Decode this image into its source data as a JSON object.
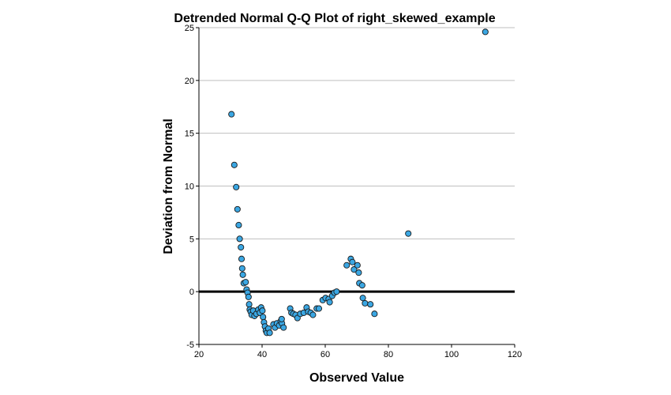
{
  "chart_data": {
    "type": "scatter",
    "title": "Detrended Normal Q-Q Plot of right_skewed_example",
    "xlabel": "Observed Value",
    "ylabel": "Deviation from Normal",
    "xlim": [
      20,
      120
    ],
    "ylim": [
      -5,
      25
    ],
    "xticks": [
      20,
      40,
      60,
      80,
      100,
      120
    ],
    "yticks": [
      -5,
      0,
      5,
      10,
      15,
      20,
      25
    ],
    "grid": "horizontal",
    "reference_line_y": 0,
    "colors": {
      "point_fill": "#3ba7e3",
      "point_stroke": "#1a1a1a",
      "grid": "#bfbfbf",
      "reference_line": "#000000"
    },
    "points": [
      [
        30.3,
        16.8
      ],
      [
        31.2,
        12.0
      ],
      [
        31.8,
        9.9
      ],
      [
        32.2,
        7.8
      ],
      [
        32.6,
        6.3
      ],
      [
        32.9,
        5.0
      ],
      [
        33.3,
        4.2
      ],
      [
        33.5,
        3.1
      ],
      [
        33.7,
        2.2
      ],
      [
        33.9,
        1.6
      ],
      [
        34.2,
        0.8
      ],
      [
        34.8,
        0.9
      ],
      [
        35.1,
        0.2
      ],
      [
        35.4,
        -0.1
      ],
      [
        35.7,
        -0.5
      ],
      [
        35.9,
        -1.2
      ],
      [
        36.1,
        -1.7
      ],
      [
        36.4,
        -1.9
      ],
      [
        36.7,
        -2.2
      ],
      [
        37.2,
        -1.8
      ],
      [
        37.6,
        -2.3
      ],
      [
        38.2,
        -2.1
      ],
      [
        38.8,
        -1.7
      ],
      [
        39.3,
        -2.0
      ],
      [
        39.7,
        -1.5
      ],
      [
        40.1,
        -1.8
      ],
      [
        40.3,
        -2.4
      ],
      [
        40.6,
        -2.9
      ],
      [
        40.9,
        -3.3
      ],
      [
        41.2,
        -3.7
      ],
      [
        41.5,
        -3.9
      ],
      [
        42.0,
        -3.5
      ],
      [
        42.4,
        -3.9
      ],
      [
        43.6,
        -3.1
      ],
      [
        44.1,
        -3.4
      ],
      [
        44.7,
        -3.0
      ],
      [
        45.4,
        -3.2
      ],
      [
        45.9,
        -2.8
      ],
      [
        46.3,
        -3.0
      ],
      [
        46.8,
        -3.4
      ],
      [
        46.2,
        -2.6
      ],
      [
        48.9,
        -1.6
      ],
      [
        49.3,
        -2.0
      ],
      [
        49.9,
        -2.1
      ],
      [
        50.6,
        -2.2
      ],
      [
        51.2,
        -2.5
      ],
      [
        52.1,
        -2.1
      ],
      [
        53.2,
        -2.0
      ],
      [
        54.1,
        -1.5
      ],
      [
        54.6,
        -1.9
      ],
      [
        55.4,
        -2.0
      ],
      [
        56.1,
        -2.2
      ],
      [
        57.3,
        -1.6
      ],
      [
        58.0,
        -1.6
      ],
      [
        59.2,
        -0.8
      ],
      [
        60.1,
        -0.6
      ],
      [
        61.1,
        -0.7
      ],
      [
        61.4,
        -1.0
      ],
      [
        62.2,
        -0.4
      ],
      [
        62.9,
        -0.1
      ],
      [
        63.6,
        0.0
      ],
      [
        66.8,
        2.5
      ],
      [
        68.1,
        3.1
      ],
      [
        68.6,
        2.8
      ],
      [
        69.1,
        2.1
      ],
      [
        70.2,
        2.5
      ],
      [
        70.6,
        1.8
      ],
      [
        70.8,
        0.8
      ],
      [
        71.7,
        0.6
      ],
      [
        71.9,
        -0.6
      ],
      [
        72.6,
        -1.1
      ],
      [
        74.3,
        -1.2
      ],
      [
        75.6,
        -2.1
      ],
      [
        86.3,
        5.5
      ],
      [
        110.7,
        24.6
      ]
    ]
  }
}
